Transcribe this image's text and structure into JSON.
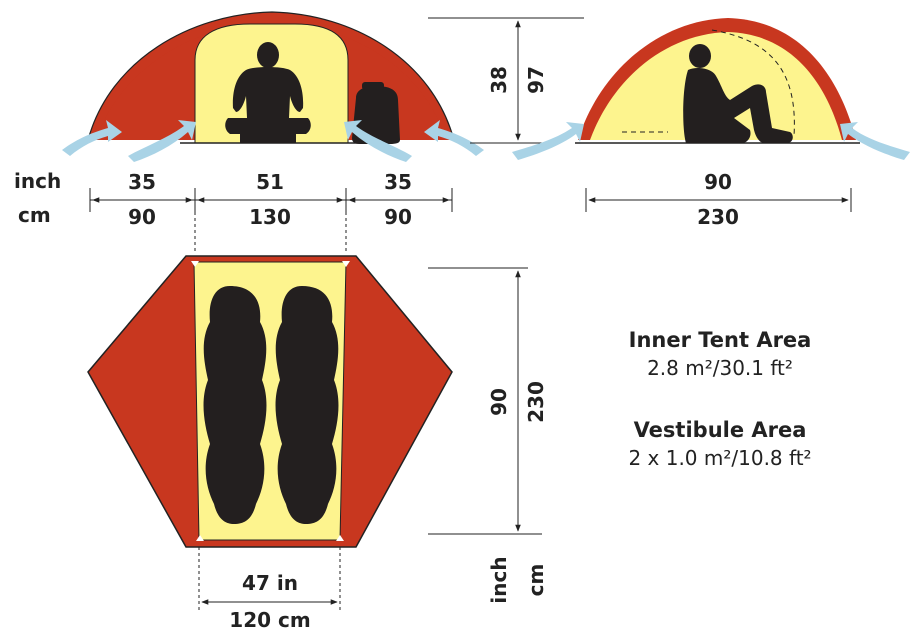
{
  "colors": {
    "outer": "#c8371f",
    "inner": "#fdf48e",
    "silhouette": "#231f1f",
    "arrow": "#a9d3e6",
    "line": "#222222"
  },
  "front_view": {
    "unit_labels": {
      "inch": "inch",
      "cm": "cm"
    },
    "widths": [
      {
        "inch": "35",
        "cm": "90"
      },
      {
        "inch": "51",
        "cm": "130"
      },
      {
        "inch": "35",
        "cm": "90"
      }
    ],
    "heights": {
      "inner": "38",
      "outer": "97"
    }
  },
  "side_view": {
    "length": {
      "inch": "90",
      "cm": "230"
    }
  },
  "floor_plan": {
    "length": {
      "inch": "90",
      "cm": "230"
    },
    "width": {
      "inch": "47 in",
      "cm": "120 cm"
    },
    "unit_labels": {
      "inch": "inch",
      "cm": "cm"
    }
  },
  "areas": {
    "inner_title": "Inner Tent Area",
    "inner_value": "2.8 m²/30.1 ft²",
    "vestibule_title": "Vestibule Area",
    "vestibule_value": "2 x 1.0 m²/10.8 ft²"
  },
  "icons": [
    "person-sitting-icon",
    "backpack-icon",
    "vent-arrow-icon",
    "sleeping-bag-icon"
  ]
}
